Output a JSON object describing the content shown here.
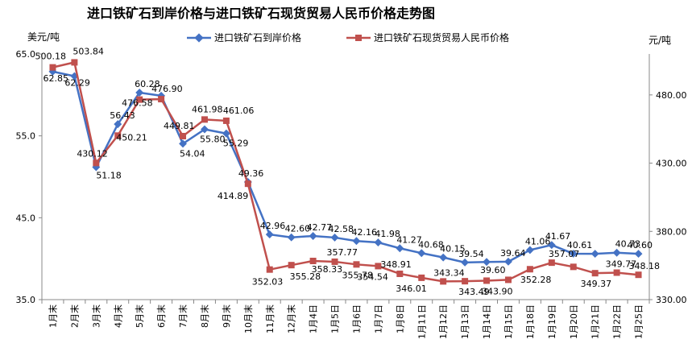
{
  "chart_data": {
    "type": "line",
    "title": "进口铁矿石到岸价格与进口铁矿石现货贸易人民币价格走势图",
    "ylabel_left": "美元/吨",
    "ylabel_right": "元/吨",
    "categories": [
      "1月末",
      "2月末",
      "3月末",
      "4月末",
      "5月末",
      "6月末",
      "7月末",
      "8月末",
      "9月末",
      "10月末",
      "11月末",
      "12月末",
      "1月4日",
      "1月5日",
      "1月6日",
      "1月7日",
      "1月8日",
      "1月11日",
      "1月12日",
      "1月13日",
      "1月14日",
      "1月15日",
      "1月18日",
      "1月19日",
      "1月20日",
      "1月21日",
      "1月22日",
      "1月25日"
    ],
    "y_left": {
      "ticks": [
        "65.0",
        "55.0",
        "45.0",
        "35.0"
      ],
      "min": 35,
      "max": 65
    },
    "y_right": {
      "ticks": [
        "480.00",
        "430.00",
        "380.00",
        "330.00"
      ],
      "min": 330,
      "max": 510
    },
    "series": [
      {
        "name": "进口铁矿石到岸价格",
        "axis": "left",
        "color": "#4472c4",
        "marker": "diamond",
        "values": [
          62.85,
          62.29,
          51.18,
          56.43,
          60.28,
          59.9,
          54.04,
          55.8,
          55.29,
          49.36,
          42.96,
          42.6,
          42.77,
          42.58,
          42.16,
          41.98,
          41.27,
          40.68,
          40.15,
          39.54,
          39.6,
          39.64,
          41.06,
          41.67,
          40.61,
          40.6,
          40.73,
          40.6
        ],
        "labels": [
          "62.85",
          "62.29",
          "51.18",
          "56.43",
          "60.28",
          "",
          "54.04",
          "55.80",
          "55.29",
          "49.36",
          "42.96",
          "42.60",
          "42.77",
          "42.58",
          "42.16",
          "41.98",
          "41.27",
          "40.68",
          "40.15",
          "39.54",
          "39.60",
          "39.64",
          "41.06",
          "41.67",
          "40.61",
          "",
          "40.73",
          "40.60"
        ]
      },
      {
        "name": "进口铁矿石现货贸易人民币价格",
        "axis": "right",
        "color": "#c0504d",
        "marker": "square",
        "values": [
          500.18,
          503.84,
          430.12,
          450.21,
          476.58,
          476.9,
          449.81,
          461.98,
          461.06,
          414.89,
          352.03,
          355.28,
          358.33,
          357.77,
          355.78,
          354.54,
          348.91,
          346.01,
          343.34,
          343.49,
          343.9,
          344.5,
          352.28,
          357.07,
          354.0,
          349.37,
          349.77,
          348.18
        ],
        "labels": [
          "500.18",
          "503.84",
          "430.12",
          "450.21",
          "476.58",
          "476.90",
          "449.81",
          "461.98",
          "461.06",
          "414.89",
          "352.03",
          "355.28",
          "358.33",
          "357.77",
          "355.78",
          "354.54",
          "348.91",
          "346.01",
          "343.34",
          "343.49",
          "343.90",
          "",
          "352.28",
          "357.07",
          "",
          "349.37",
          "349.77",
          "348.18"
        ]
      }
    ]
  }
}
